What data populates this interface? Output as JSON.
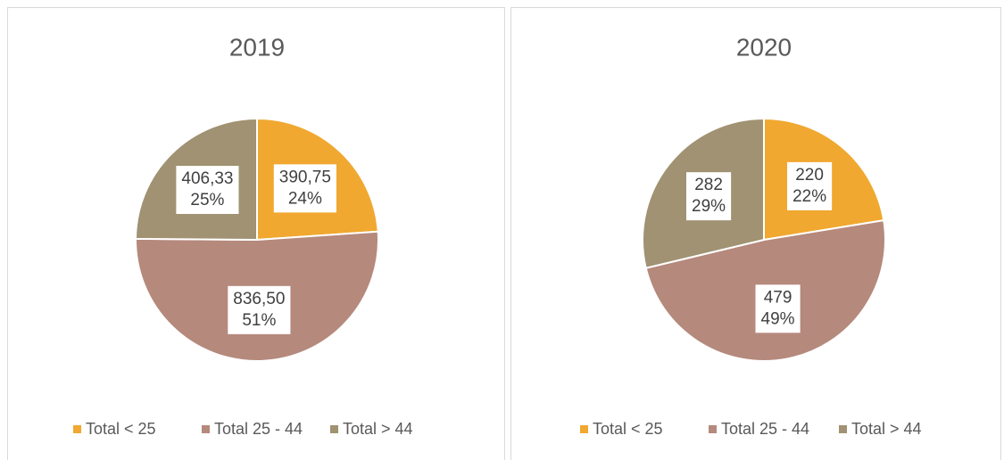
{
  "chart_data": [
    {
      "type": "pie",
      "title": "2019",
      "categories": [
        "Total < 25",
        "Total 25 - 44",
        "Total > 44"
      ],
      "values": [
        390.75,
        836.5,
        406.33
      ],
      "value_labels": [
        "390,75",
        "836,50",
        "406,33"
      ],
      "percentages": [
        24,
        51,
        25
      ],
      "percentage_labels": [
        "24%",
        "51%",
        "25%"
      ],
      "colors": [
        "#f0a830",
        "#b5897c",
        "#a09272"
      ],
      "legend": "bottom"
    },
    {
      "type": "pie",
      "title": "2020",
      "categories": [
        "Total < 25",
        "Total 25 - 44",
        "Total > 44"
      ],
      "values": [
        220,
        479,
        282
      ],
      "percentages": [
        22,
        49,
        29
      ],
      "percentage_labels": [
        "22%",
        "49%",
        "29%"
      ],
      "colors": [
        "#f0a830",
        "#b5897c",
        "#a09272"
      ],
      "legend": "bottom"
    }
  ]
}
